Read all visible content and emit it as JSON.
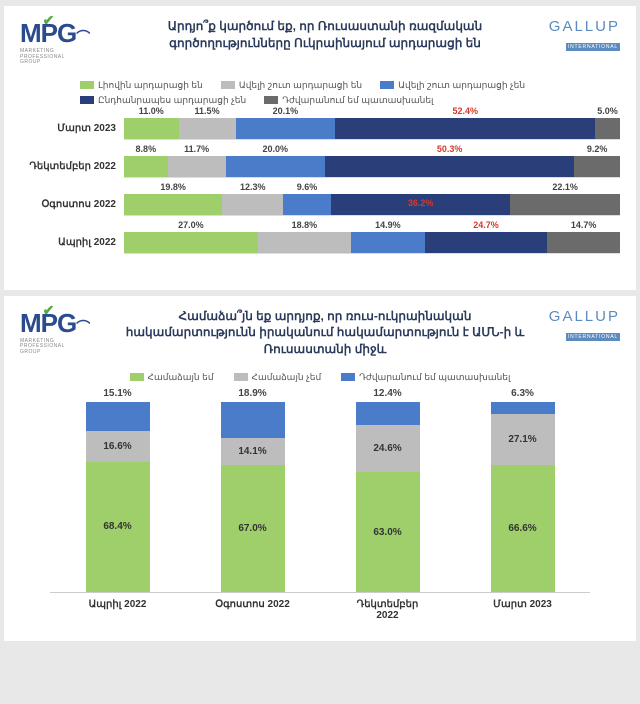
{
  "colors": {
    "c1": "#9fcf6b",
    "c2": "#bdbdbd",
    "c3": "#4a7cc9",
    "c4": "#2a3f7a",
    "c5": "#6b6b6b",
    "red": "#d43a2a"
  },
  "chart1": {
    "title": "Արդյո՞ք կարծում եք, որ Ռուսաստանի ռազմական գործողությունները Ուկրաինայում արդարացի են",
    "legend": [
      {
        "label": "Լիովին արդարացի են",
        "color": "c1"
      },
      {
        "label": "Ավելի շուտ արդարացի են",
        "color": "c2"
      },
      {
        "label": "Ավելի շուտ արդարացի չեն",
        "color": "c3"
      },
      {
        "label": "Ընդհանրապես արդարացի չեն",
        "color": "c4"
      },
      {
        "label": "Դժվարանում եմ պատասխանել",
        "color": "c5"
      }
    ],
    "rows": [
      {
        "label": "Մարտ 2023",
        "segs": [
          {
            "v": 11.0,
            "c": "c1"
          },
          {
            "v": 11.5,
            "c": "c2"
          },
          {
            "v": 20.1,
            "c": "c3"
          },
          {
            "v": 52.4,
            "c": "c4",
            "hl": true
          },
          {
            "v": 5.0,
            "c": "c5"
          }
        ]
      },
      {
        "label": "Դեկտեմբեր 2022",
        "segs": [
          {
            "v": 8.8,
            "c": "c1"
          },
          {
            "v": 11.7,
            "c": "c2"
          },
          {
            "v": 20.0,
            "c": "c3"
          },
          {
            "v": 50.3,
            "c": "c4",
            "hl": true
          },
          {
            "v": 9.2,
            "c": "c5"
          }
        ]
      },
      {
        "label": "Օգոստոս 2022",
        "segs": [
          {
            "v": 19.8,
            "c": "c1"
          },
          {
            "v": 12.3,
            "c": "c2"
          },
          {
            "v": 9.6,
            "c": "c3"
          },
          {
            "v": 36.2,
            "c": "c4",
            "hl": true,
            "inside": true
          },
          {
            "v": 22.1,
            "c": "c5"
          }
        ]
      },
      {
        "label": "Ապրիլ 2022",
        "segs": [
          {
            "v": 27.0,
            "c": "c1"
          },
          {
            "v": 18.8,
            "c": "c2"
          },
          {
            "v": 14.9,
            "c": "c3"
          },
          {
            "v": 24.7,
            "c": "c4",
            "hl": true
          },
          {
            "v": 14.7,
            "c": "c5"
          }
        ]
      }
    ]
  },
  "chart2": {
    "title": "Համաձա՞յն եք արդյոք, որ ռուս-ուկրաինական հակամարտությունն իրականում հակամարտություն է ԱՄՆ-ի և Ռուսաստանի միջև",
    "legend": [
      {
        "label": "Համաձայն եմ",
        "color": "c1"
      },
      {
        "label": "Համաձայն չեմ",
        "color": "c2"
      },
      {
        "label": "Դժվարանում եմ պատասխանել",
        "color": "c3"
      }
    ],
    "cols": [
      {
        "label": "Ապրիլ 2022",
        "segs": [
          {
            "v": 68.4,
            "c": "c1"
          },
          {
            "v": 16.6,
            "c": "c2"
          },
          {
            "v": 15.1,
            "c": "c3",
            "top": true
          }
        ]
      },
      {
        "label": "Օգոստոս 2022",
        "segs": [
          {
            "v": 67.0,
            "c": "c1"
          },
          {
            "v": 14.1,
            "c": "c2"
          },
          {
            "v": 18.9,
            "c": "c3",
            "top": true
          }
        ]
      },
      {
        "label": "Դեկտեմբեր 2022",
        "segs": [
          {
            "v": 63.0,
            "c": "c1"
          },
          {
            "v": 24.6,
            "c": "c2"
          },
          {
            "v": 12.4,
            "c": "c3",
            "top": true
          }
        ]
      },
      {
        "label": "Մարտ 2023",
        "segs": [
          {
            "v": 66.6,
            "c": "c1"
          },
          {
            "v": 27.1,
            "c": "c2"
          },
          {
            "v": 6.3,
            "c": "c3",
            "top": true
          }
        ]
      }
    ]
  },
  "logos": {
    "mpg_sub1": "MARKETING",
    "mpg_sub2": "PROFESSIONAL",
    "mpg_sub3": "GROUP",
    "gallup": "GALLUP",
    "gallup_sub": "INTERNATIONAL"
  }
}
